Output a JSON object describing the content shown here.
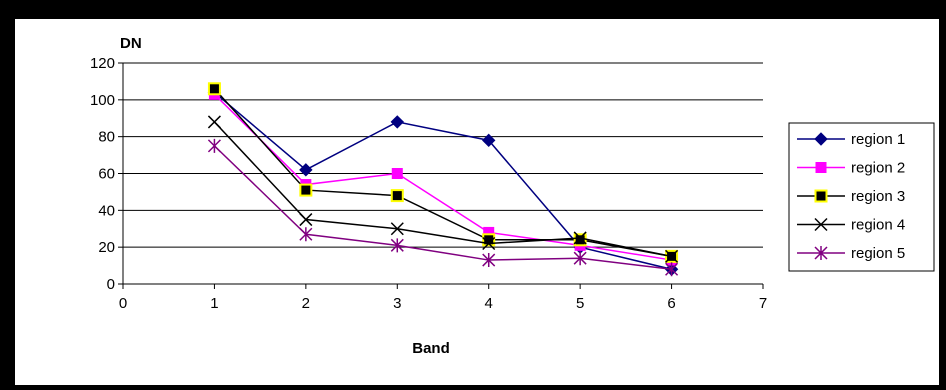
{
  "chart_data": {
    "type": "line",
    "title": "",
    "xlabel": "Band",
    "ylabel": "DN",
    "xlim": [
      0,
      7
    ],
    "ylim": [
      0,
      120
    ],
    "xticks": [
      0,
      1,
      2,
      3,
      4,
      5,
      6,
      7
    ],
    "yticks": [
      0,
      20,
      40,
      60,
      80,
      100,
      120
    ],
    "grid": "horizontal",
    "legend": "right",
    "x": [
      1,
      2,
      3,
      4,
      5,
      6
    ],
    "series": [
      {
        "name": "region 1",
        "color": "#000080",
        "marker": "diamond",
        "values": [
          104,
          62,
          88,
          78,
          20,
          8
        ]
      },
      {
        "name": "region 2",
        "color": "#FF00FF",
        "marker": "square",
        "values": [
          103,
          54,
          60,
          28,
          21,
          13
        ]
      },
      {
        "name": "region 3",
        "color": "#000000",
        "marker": "square-yellow",
        "values": [
          106,
          51,
          48,
          24,
          24,
          15
        ]
      },
      {
        "name": "region 4",
        "color": "#000000",
        "marker": "x",
        "values": [
          88,
          35,
          30,
          22,
          25,
          15
        ]
      },
      {
        "name": "region 5",
        "color": "#800080",
        "marker": "asterisk",
        "values": [
          75,
          27,
          21,
          13,
          14,
          8
        ]
      }
    ]
  }
}
